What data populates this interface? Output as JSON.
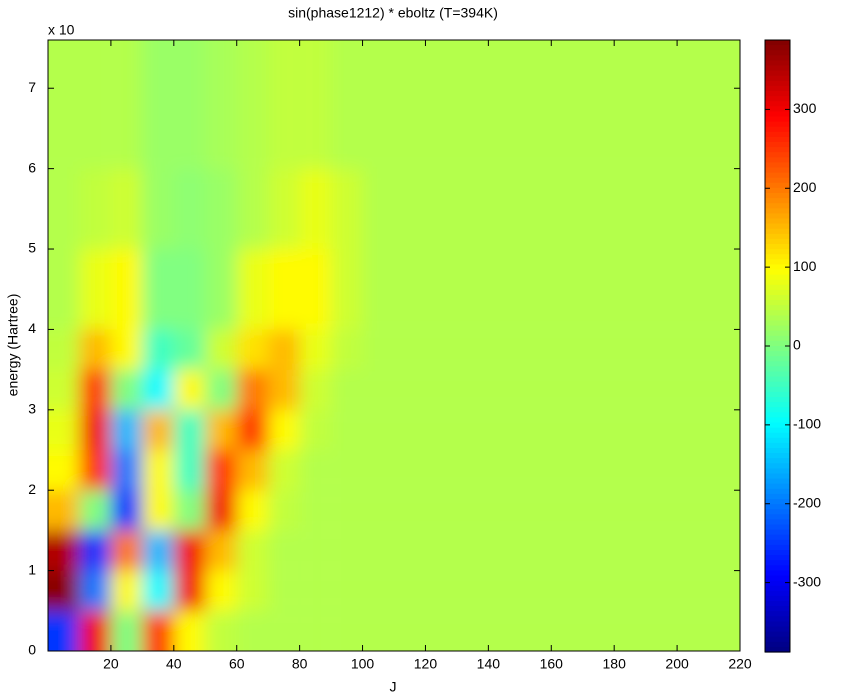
{
  "chart_data": {
    "type": "heatmap",
    "title": "sin(phase1212) * eboltz (T=394K)",
    "x_label": "J",
    "y_label": "energy (Hartree)",
    "y_multiplier": "x 10",
    "x_edges": [
      0,
      10,
      20,
      30,
      40,
      50,
      60,
      70,
      80,
      90,
      100,
      220
    ],
    "y_edges": [
      0,
      0.5,
      1,
      1.5,
      2,
      2.5,
      3,
      3.5,
      4,
      5,
      6,
      7.6
    ],
    "z": [
      [
        -250,
        300,
        0,
        250,
        100,
        50,
        40,
        40,
        40,
        40,
        40
      ],
      [
        380,
        -200,
        100,
        -100,
        300,
        100,
        60,
        40,
        40,
        40,
        40
      ],
      [
        350,
        -250,
        200,
        -150,
        300,
        150,
        60,
        40,
        40,
        40,
        40
      ],
      [
        150,
        0,
        -250,
        100,
        0,
        300,
        100,
        50,
        40,
        40,
        40
      ],
      [
        100,
        250,
        -200,
        100,
        -50,
        250,
        150,
        60,
        40,
        40,
        40
      ],
      [
        80,
        300,
        -150,
        150,
        -50,
        150,
        250,
        100,
        50,
        40,
        40
      ],
      [
        60,
        250,
        0,
        -100,
        100,
        0,
        200,
        150,
        60,
        40,
        40
      ],
      [
        50,
        150,
        100,
        -50,
        -20,
        60,
        120,
        150,
        80,
        50,
        40
      ],
      [
        40,
        80,
        100,
        0,
        0,
        20,
        80,
        100,
        100,
        60,
        40
      ],
      [
        40,
        50,
        60,
        20,
        10,
        20,
        40,
        60,
        80,
        60,
        40
      ],
      [
        40,
        40,
        40,
        20,
        20,
        30,
        40,
        50,
        50,
        40,
        40
      ]
    ],
    "xlim": [
      0,
      220
    ],
    "xticks": [
      20,
      40,
      60,
      80,
      100,
      120,
      140,
      160,
      180,
      200,
      220
    ],
    "ylim": [
      0,
      7.6
    ],
    "yticks": [
      0,
      1,
      2,
      3,
      4,
      5,
      6,
      7
    ],
    "clim": [
      -388,
      388
    ],
    "cticks": [
      -300,
      -200,
      -100,
      0,
      100,
      200,
      300
    ],
    "colormap": "jet"
  }
}
